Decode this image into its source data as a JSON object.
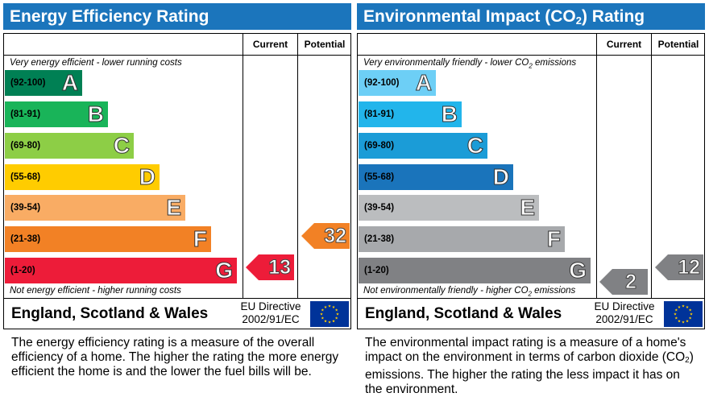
{
  "energy": {
    "title": "Energy Efficiency Rating",
    "current_label": "Current",
    "potential_label": "Potential",
    "top_caption": "Very energy efficient - lower running costs",
    "bottom_caption": "Not energy efficient - higher running costs",
    "bands": [
      {
        "range": "(92-100)",
        "letter": "A",
        "color": "#008054"
      },
      {
        "range": "(81-91)",
        "letter": "B",
        "color": "#19b459"
      },
      {
        "range": "(69-80)",
        "letter": "C",
        "color": "#8dce46"
      },
      {
        "range": "(55-68)",
        "letter": "D",
        "color": "#ffcc00"
      },
      {
        "range": "(39-54)",
        "letter": "E",
        "color": "#f9ac64"
      },
      {
        "range": "(21-38)",
        "letter": "F",
        "color": "#f28125"
      },
      {
        "range": "(1-20)",
        "letter": "G",
        "color": "#ed1c39"
      }
    ],
    "current": {
      "value": "13",
      "band": "G",
      "color": "#ed1c39"
    },
    "potential": {
      "value": "32",
      "band": "F",
      "color": "#f28125"
    },
    "region": "England, Scotland & Wales",
    "directive_line1": "EU Directive",
    "directive_line2": "2002/91/EC",
    "description": "The energy efficiency rating is a measure of the overall efficiency of a home. The higher the rating the more energy efficient the home is and the lower the fuel bills will be."
  },
  "environment": {
    "title_pre": "Environmental Impact (CO",
    "title_sub": "2",
    "title_post": ") Rating",
    "current_label": "Current",
    "potential_label": "Potential",
    "top_caption_pre": "Very environmentally friendly - lower CO",
    "top_caption_sub": "2",
    "top_caption_post": " emissions",
    "bottom_caption_pre": "Not environmentally friendly - higher CO",
    "bottom_caption_sub": "2",
    "bottom_caption_post": " emissions",
    "bands": [
      {
        "range": "(92-100)",
        "letter": "A",
        "color": "#6dcff6"
      },
      {
        "range": "(81-91)",
        "letter": "B",
        "color": "#22b5eb"
      },
      {
        "range": "(69-80)",
        "letter": "C",
        "color": "#1b9cd7"
      },
      {
        "range": "(55-68)",
        "letter": "D",
        "color": "#1a74bb"
      },
      {
        "range": "(39-54)",
        "letter": "E",
        "color": "#bbbdbf"
      },
      {
        "range": "(21-38)",
        "letter": "F",
        "color": "#a7a9ac"
      },
      {
        "range": "(1-20)",
        "letter": "G",
        "color": "#808184"
      }
    ],
    "current": {
      "value": "2",
      "band": "G",
      "color": "#808184"
    },
    "potential": {
      "value": "12",
      "band": "G",
      "color": "#808184"
    },
    "region": "England, Scotland & Wales",
    "directive_line1": "EU Directive",
    "directive_line2": "2002/91/EC",
    "description_pre": "The environmental impact rating is a measure of a home's impact on the environment in terms of carbon dioxide (CO",
    "description_sub": "2",
    "description_post": ") emissions. The higher the rating the less impact it has on the environment."
  },
  "colors": {
    "header_blue": "#1b75bc",
    "eu_flag_blue": "#003399",
    "eu_star_yellow": "#ffcc00"
  }
}
